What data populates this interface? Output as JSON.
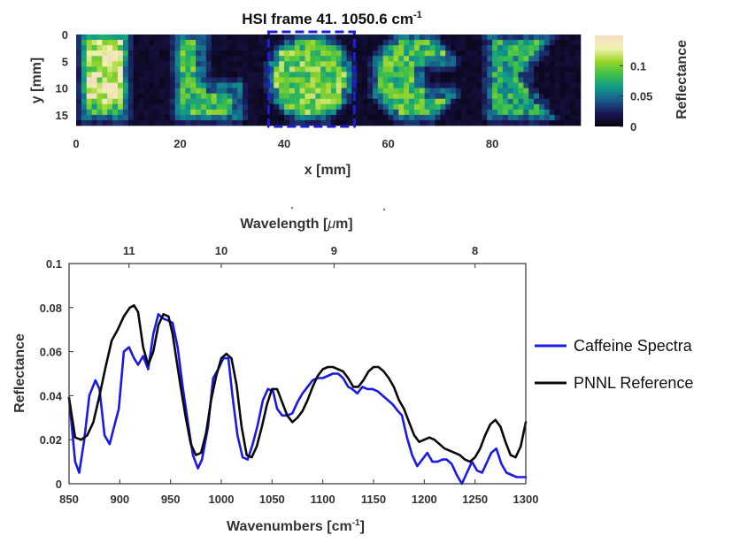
{
  "chart_data": [
    {
      "type": "heatmap",
      "title": "HSI frame 41. 1050.6 cm",
      "title_sup": "-1",
      "xlabel": "x [mm]",
      "ylabel": "y [mm]",
      "xlim": [
        0,
        97
      ],
      "ylim": [
        0,
        17
      ],
      "x_ticks": [
        0,
        20,
        40,
        60,
        80
      ],
      "y_ticks": [
        0,
        5,
        10,
        15
      ],
      "colorbar": {
        "label": "Reflectance",
        "range": [
          0,
          0.15
        ],
        "ticks": [
          0,
          0.05,
          0.1
        ],
        "tick_labels": [
          "0",
          "0.05",
          "0.1"
        ],
        "colors": [
          "#080410",
          "#1a1654",
          "#1a5a8c",
          "#0e9a8a",
          "#3cbf4a",
          "#9ad62a",
          "#f2f2b0",
          "#f6dcc6"
        ]
      },
      "highlight_box": {
        "x_range": [
          37,
          53.5
        ],
        "y_range": [
          -1,
          17
        ],
        "color": "#1e1ed8",
        "style": "dashed"
      },
      "letters": [
        "B",
        "L",
        "O",
        "C",
        "K"
      ],
      "letter_centers_mm": [
        5,
        24,
        45,
        66,
        85
      ]
    },
    {
      "type": "line",
      "xlabel": "Wavenumbers [cm",
      "xlabel_sup": "-1",
      "xlabel_tail": "]",
      "ylabel": "Reflectance",
      "top_axis_label_prefix": "Wavelength [",
      "top_axis_label_mu": "μ",
      "top_axis_label_suffix": "m]",
      "xlim": [
        850,
        1300
      ],
      "ylim": [
        0,
        0.1
      ],
      "x_ticks": [
        850,
        900,
        950,
        1000,
        1050,
        1100,
        1150,
        1200,
        1250,
        1300
      ],
      "y_ticks": [
        0,
        0.02,
        0.04,
        0.06,
        0.08,
        0.1
      ],
      "y_tick_labels": [
        "0",
        "0.02",
        "0.04",
        "0.06",
        "0.08",
        "0.1"
      ],
      "top_ticks": [
        11,
        10,
        9,
        8
      ],
      "legend_position": "right",
      "series": [
        {
          "name": "Caffeine Spectra",
          "color": "#1a1ae6",
          "x": [
            850,
            856,
            860,
            865,
            870,
            876,
            880,
            885,
            890,
            895,
            899,
            904,
            909,
            914,
            918,
            923,
            928,
            933,
            938,
            943,
            948,
            952,
            957,
            962,
            967,
            972,
            977,
            981,
            987,
            992,
            997,
            1002,
            1007,
            1011,
            1016,
            1021,
            1026,
            1031,
            1036,
            1041,
            1046,
            1051,
            1055,
            1060,
            1065,
            1070,
            1075,
            1080,
            1085,
            1090,
            1095,
            1100,
            1105,
            1110,
            1115,
            1120,
            1125,
            1129,
            1134,
            1139,
            1144,
            1149,
            1154,
            1159,
            1164,
            1169,
            1174,
            1178,
            1183,
            1188,
            1193,
            1198,
            1203,
            1208,
            1213,
            1218,
            1222,
            1227,
            1232,
            1237,
            1242,
            1247,
            1252,
            1257,
            1262,
            1266,
            1271,
            1276,
            1281,
            1286,
            1291,
            1296,
            1300
          ],
          "y": [
            0.039,
            0.01,
            0.005,
            0.02,
            0.04,
            0.047,
            0.043,
            0.022,
            0.018,
            0.027,
            0.034,
            0.06,
            0.062,
            0.057,
            0.054,
            0.058,
            0.052,
            0.068,
            0.077,
            0.075,
            0.074,
            0.073,
            0.062,
            0.044,
            0.028,
            0.013,
            0.007,
            0.011,
            0.026,
            0.048,
            0.052,
            0.057,
            0.057,
            0.04,
            0.022,
            0.012,
            0.011,
            0.018,
            0.027,
            0.038,
            0.043,
            0.042,
            0.034,
            0.031,
            0.031,
            0.032,
            0.037,
            0.041,
            0.044,
            0.047,
            0.048,
            0.048,
            0.049,
            0.05,
            0.05,
            0.048,
            0.044,
            0.043,
            0.041,
            0.044,
            0.043,
            0.043,
            0.042,
            0.04,
            0.038,
            0.036,
            0.033,
            0.031,
            0.021,
            0.013,
            0.008,
            0.011,
            0.014,
            0.01,
            0.01,
            0.011,
            0.011,
            0.009,
            0.004,
            0.0,
            0.005,
            0.01,
            0.006,
            0.005,
            0.01,
            0.014,
            0.016,
            0.009,
            0.005,
            0.004,
            0.003,
            0.003,
            0.003
          ]
        },
        {
          "name": "PNNL Reference",
          "color": "#0a0a0a",
          "x": [
            850,
            856,
            862,
            868,
            874,
            880,
            886,
            892,
            898,
            904,
            910,
            914,
            918,
            923,
            928,
            933,
            938,
            943,
            948,
            952,
            956,
            960,
            965,
            970,
            975,
            980,
            985,
            990,
            995,
            1000,
            1005,
            1010,
            1015,
            1020,
            1025,
            1030,
            1035,
            1040,
            1045,
            1050,
            1055,
            1060,
            1065,
            1070,
            1075,
            1080,
            1085,
            1090,
            1095,
            1100,
            1105,
            1110,
            1115,
            1120,
            1125,
            1130,
            1135,
            1140,
            1145,
            1150,
            1155,
            1160,
            1165,
            1170,
            1175,
            1180,
            1185,
            1190,
            1195,
            1200,
            1205,
            1210,
            1215,
            1220,
            1225,
            1230,
            1235,
            1240,
            1245,
            1250,
            1255,
            1260,
            1265,
            1270,
            1275,
            1280,
            1285,
            1290,
            1295,
            1300
          ],
          "y": [
            0.039,
            0.021,
            0.02,
            0.022,
            0.028,
            0.04,
            0.053,
            0.065,
            0.07,
            0.076,
            0.08,
            0.081,
            0.078,
            0.062,
            0.054,
            0.06,
            0.072,
            0.077,
            0.076,
            0.068,
            0.056,
            0.044,
            0.03,
            0.018,
            0.013,
            0.014,
            0.023,
            0.038,
            0.049,
            0.057,
            0.059,
            0.057,
            0.045,
            0.026,
            0.013,
            0.012,
            0.017,
            0.026,
            0.036,
            0.043,
            0.043,
            0.037,
            0.031,
            0.028,
            0.03,
            0.033,
            0.038,
            0.044,
            0.049,
            0.052,
            0.053,
            0.053,
            0.052,
            0.051,
            0.048,
            0.044,
            0.044,
            0.047,
            0.051,
            0.053,
            0.053,
            0.051,
            0.048,
            0.044,
            0.038,
            0.034,
            0.028,
            0.022,
            0.019,
            0.02,
            0.021,
            0.02,
            0.018,
            0.016,
            0.015,
            0.014,
            0.013,
            0.011,
            0.01,
            0.012,
            0.016,
            0.022,
            0.027,
            0.029,
            0.026,
            0.019,
            0.013,
            0.012,
            0.017,
            0.028
          ]
        }
      ]
    }
  ]
}
